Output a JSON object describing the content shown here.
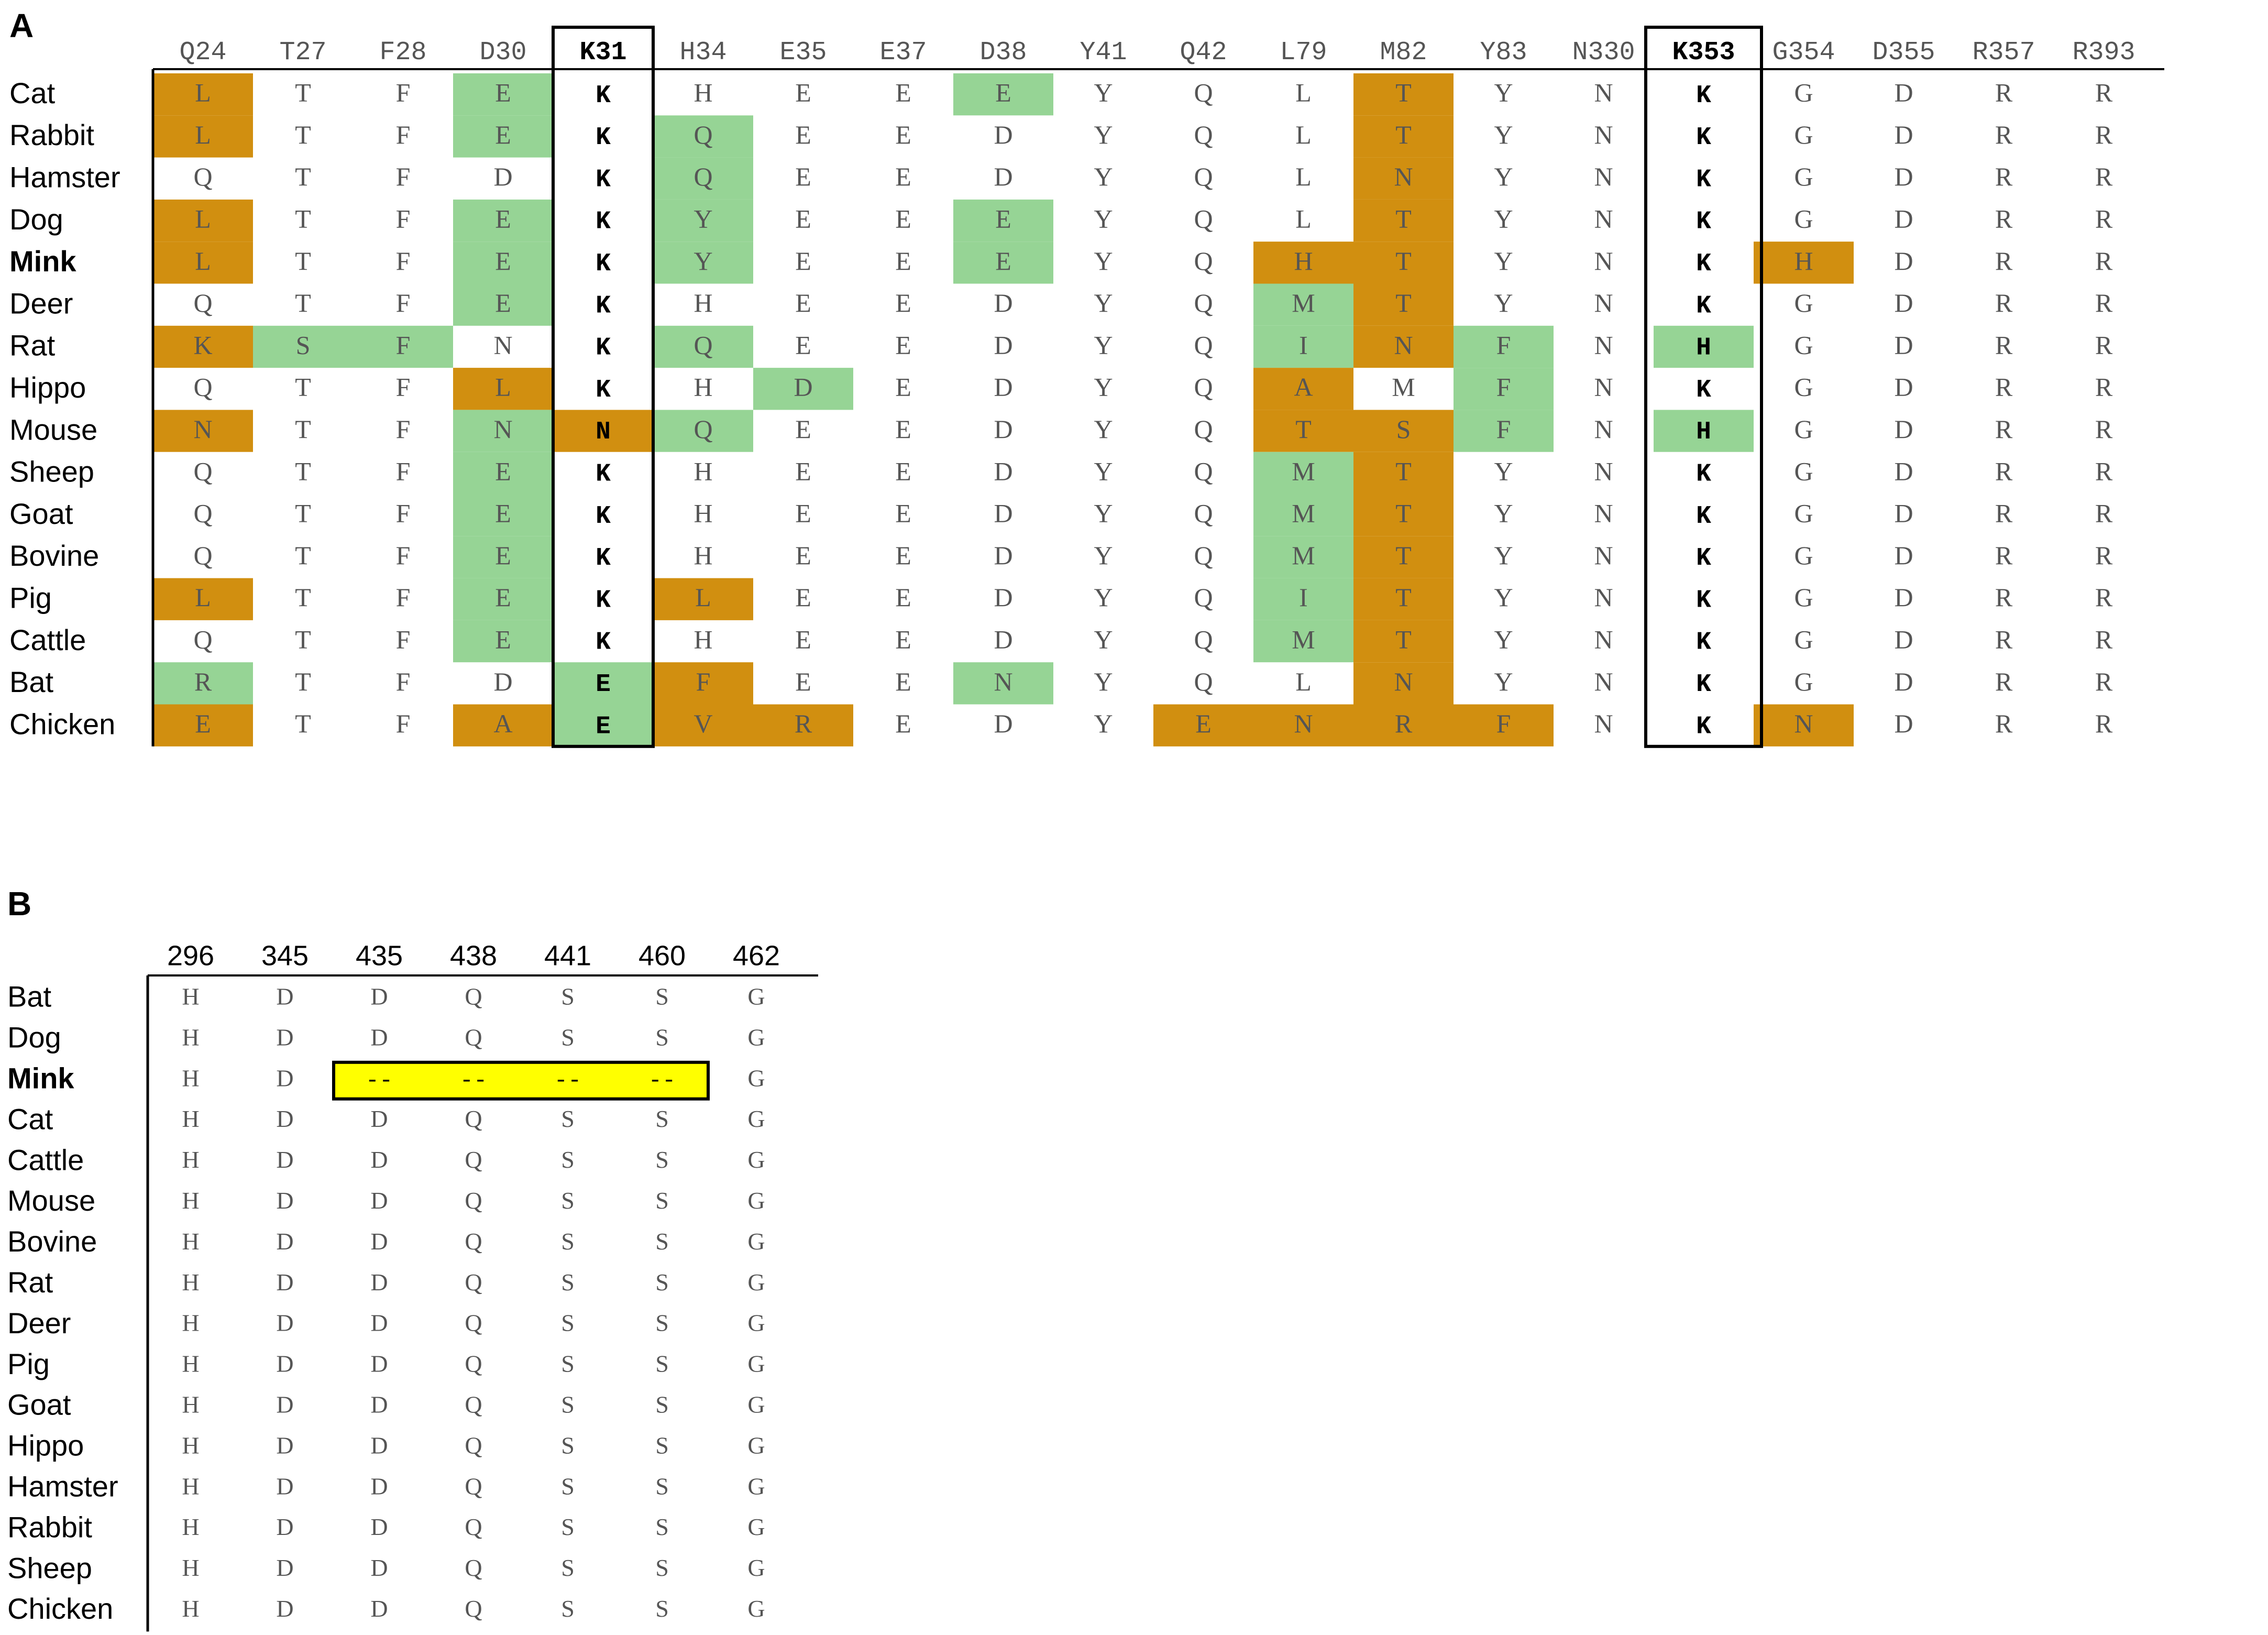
{
  "panel_a": {
    "label": "A",
    "colors": {
      "orange": "#d18f10",
      "green": "#96d495",
      "border": "#000000"
    },
    "columns": [
      "Q24",
      "T27",
      "F28",
      "D30",
      "K31",
      "H34",
      "E35",
      "E37",
      "D38",
      "Y41",
      "Q42",
      "L79",
      "M82",
      "Y83",
      "N330",
      "K353",
      "G354",
      "D355",
      "R357",
      "R393"
    ],
    "boxed_columns": [
      4,
      15
    ],
    "rows": [
      {
        "species": "Cat",
        "bold": false,
        "residues": [
          "L",
          "T",
          "F",
          "E",
          "K",
          "H",
          "E",
          "E",
          "E",
          "Y",
          "Q",
          "L",
          "T",
          "Y",
          "N",
          "K",
          "G",
          "D",
          "R",
          "R"
        ],
        "shade": "o..g....g...o......."
      },
      {
        "species": "Rabbit",
        "bold": false,
        "residues": [
          "L",
          "T",
          "F",
          "E",
          "K",
          "Q",
          "E",
          "E",
          "D",
          "Y",
          "Q",
          "L",
          "T",
          "Y",
          "N",
          "K",
          "G",
          "D",
          "R",
          "R"
        ],
        "shade": "o..g.g......o......."
      },
      {
        "species": "Hamster",
        "bold": false,
        "residues": [
          "Q",
          "T",
          "F",
          "D",
          "K",
          "Q",
          "E",
          "E",
          "D",
          "Y",
          "Q",
          "L",
          "N",
          "Y",
          "N",
          "K",
          "G",
          "D",
          "R",
          "R"
        ],
        "shade": ".....g......o......."
      },
      {
        "species": "Dog",
        "bold": false,
        "residues": [
          "L",
          "T",
          "F",
          "E",
          "K",
          "Y",
          "E",
          "E",
          "E",
          "Y",
          "Q",
          "L",
          "T",
          "Y",
          "N",
          "K",
          "G",
          "D",
          "R",
          "R"
        ],
        "shade": "o..g.g..g...o......."
      },
      {
        "species": "Mink",
        "bold": true,
        "residues": [
          "L",
          "T",
          "F",
          "E",
          "K",
          "Y",
          "E",
          "E",
          "E",
          "Y",
          "Q",
          "H",
          "T",
          "Y",
          "N",
          "K",
          "H",
          "D",
          "R",
          "R"
        ],
        "shade": "o..g.g..g..oo...o..."
      },
      {
        "species": "Deer",
        "bold": false,
        "residues": [
          "Q",
          "T",
          "F",
          "E",
          "K",
          "H",
          "E",
          "E",
          "D",
          "Y",
          "Q",
          "M",
          "T",
          "Y",
          "N",
          "K",
          "G",
          "D",
          "R",
          "R"
        ],
        "shade": "...g.......go......."
      },
      {
        "species": "Rat",
        "bold": false,
        "residues": [
          "K",
          "S",
          "F",
          "N",
          "K",
          "Q",
          "E",
          "E",
          "D",
          "Y",
          "Q",
          "I",
          "N",
          "F",
          "N",
          "H",
          "G",
          "D",
          "R",
          "R"
        ],
        "shade": "ogg..g.....gog.g...."
      },
      {
        "species": "Hippo",
        "bold": false,
        "residues": [
          "Q",
          "T",
          "F",
          "L",
          "K",
          "H",
          "D",
          "E",
          "D",
          "Y",
          "Q",
          "A",
          "M",
          "F",
          "N",
          "K",
          "G",
          "D",
          "R",
          "R"
        ],
        "shade": "...o..g....o.g......"
      },
      {
        "species": "Mouse",
        "bold": false,
        "residues": [
          "N",
          "T",
          "F",
          "N",
          "N",
          "Q",
          "E",
          "E",
          "D",
          "Y",
          "Q",
          "T",
          "S",
          "F",
          "N",
          "H",
          "G",
          "D",
          "R",
          "R"
        ],
        "shade": "o..gog.....oog.g...."
      },
      {
        "species": "Sheep",
        "bold": false,
        "residues": [
          "Q",
          "T",
          "F",
          "E",
          "K",
          "H",
          "E",
          "E",
          "D",
          "Y",
          "Q",
          "M",
          "T",
          "Y",
          "N",
          "K",
          "G",
          "D",
          "R",
          "R"
        ],
        "shade": "...g.......go......."
      },
      {
        "species": "Goat",
        "bold": false,
        "residues": [
          "Q",
          "T",
          "F",
          "E",
          "K",
          "H",
          "E",
          "E",
          "D",
          "Y",
          "Q",
          "M",
          "T",
          "Y",
          "N",
          "K",
          "G",
          "D",
          "R",
          "R"
        ],
        "shade": "...g.......go......."
      },
      {
        "species": "Bovine",
        "bold": false,
        "residues": [
          "Q",
          "T",
          "F",
          "E",
          "K",
          "H",
          "E",
          "E",
          "D",
          "Y",
          "Q",
          "M",
          "T",
          "Y",
          "N",
          "K",
          "G",
          "D",
          "R",
          "R"
        ],
        "shade": "...g.......go......."
      },
      {
        "species": "Pig",
        "bold": false,
        "residues": [
          "L",
          "T",
          "F",
          "E",
          "K",
          "L",
          "E",
          "E",
          "D",
          "Y",
          "Q",
          "I",
          "T",
          "Y",
          "N",
          "K",
          "G",
          "D",
          "R",
          "R"
        ],
        "shade": "o..g.o.....go......."
      },
      {
        "species": "Cattle",
        "bold": false,
        "residues": [
          "Q",
          "T",
          "F",
          "E",
          "K",
          "H",
          "E",
          "E",
          "D",
          "Y",
          "Q",
          "M",
          "T",
          "Y",
          "N",
          "K",
          "G",
          "D",
          "R",
          "R"
        ],
        "shade": "...g.......go......."
      },
      {
        "species": "Bat",
        "bold": false,
        "residues": [
          "R",
          "T",
          "F",
          "D",
          "E",
          "F",
          "E",
          "E",
          "N",
          "Y",
          "Q",
          "L",
          "N",
          "Y",
          "N",
          "K",
          "G",
          "D",
          "R",
          "R"
        ],
        "shade": "g...go..g...o......."
      },
      {
        "species": "Chicken",
        "bold": false,
        "residues": [
          "E",
          "T",
          "F",
          "A",
          "E",
          "V",
          "R",
          "E",
          "D",
          "Y",
          "E",
          "N",
          "R",
          "F",
          "N",
          "K",
          "N",
          "D",
          "R",
          "R"
        ],
        "shade": "o..ogoo...oooo..o..."
      }
    ]
  },
  "panel_b": {
    "label": "B",
    "colors": {
      "highlight": "#ffff00"
    },
    "columns": [
      "296",
      "345",
      "435",
      "438",
      "441",
      "460",
      "462"
    ],
    "rows": [
      {
        "species": "Bat",
        "bold": false,
        "residues": [
          "H",
          "D",
          "D",
          "Q",
          "S",
          "S",
          "G"
        ]
      },
      {
        "species": "Dog",
        "bold": false,
        "residues": [
          "H",
          "D",
          "D",
          "Q",
          "S",
          "S",
          "G"
        ]
      },
      {
        "species": "Mink",
        "bold": true,
        "residues": [
          "H",
          "D",
          "--",
          "--",
          "--",
          "--",
          "G"
        ]
      },
      {
        "species": "Cat",
        "bold": false,
        "residues": [
          "H",
          "D",
          "D",
          "Q",
          "S",
          "S",
          "G"
        ]
      },
      {
        "species": "Cattle",
        "bold": false,
        "residues": [
          "H",
          "D",
          "D",
          "Q",
          "S",
          "S",
          "G"
        ]
      },
      {
        "species": "Mouse",
        "bold": false,
        "residues": [
          "H",
          "D",
          "D",
          "Q",
          "S",
          "S",
          "G"
        ]
      },
      {
        "species": "Bovine",
        "bold": false,
        "residues": [
          "H",
          "D",
          "D",
          "Q",
          "S",
          "S",
          "G"
        ]
      },
      {
        "species": "Rat",
        "bold": false,
        "residues": [
          "H",
          "D",
          "D",
          "Q",
          "S",
          "S",
          "G"
        ]
      },
      {
        "species": "Deer",
        "bold": false,
        "residues": [
          "H",
          "D",
          "D",
          "Q",
          "S",
          "S",
          "G"
        ]
      },
      {
        "species": "Pig",
        "bold": false,
        "residues": [
          "H",
          "D",
          "D",
          "Q",
          "S",
          "S",
          "G"
        ]
      },
      {
        "species": "Goat",
        "bold": false,
        "residues": [
          "H",
          "D",
          "D",
          "Q",
          "S",
          "S",
          "G"
        ]
      },
      {
        "species": "Hippo",
        "bold": false,
        "residues": [
          "H",
          "D",
          "D",
          "Q",
          "S",
          "S",
          "G"
        ]
      },
      {
        "species": "Hamster",
        "bold": false,
        "residues": [
          "H",
          "D",
          "D",
          "Q",
          "S",
          "S",
          "G"
        ]
      },
      {
        "species": "Rabbit",
        "bold": false,
        "residues": [
          "H",
          "D",
          "D",
          "Q",
          "S",
          "S",
          "G"
        ]
      },
      {
        "species": "Sheep",
        "bold": false,
        "residues": [
          "H",
          "D",
          "D",
          "Q",
          "S",
          "S",
          "G"
        ]
      },
      {
        "species": "Chicken",
        "bold": false,
        "residues": [
          "H",
          "D",
          "D",
          "Q",
          "S",
          "S",
          "G"
        ]
      }
    ]
  }
}
